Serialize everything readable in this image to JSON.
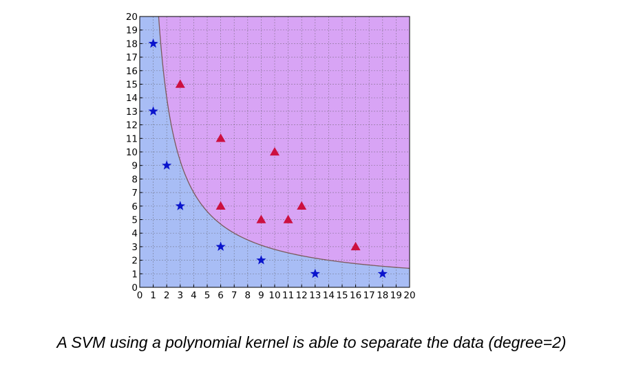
{
  "chart_data": {
    "type": "scatter",
    "title": "",
    "xlabel": "",
    "ylabel": "",
    "xlim": [
      0,
      20
    ],
    "ylim": [
      0,
      20
    ],
    "x_ticks": [
      0,
      1,
      2,
      3,
      4,
      5,
      6,
      7,
      8,
      9,
      10,
      11,
      12,
      13,
      14,
      15,
      16,
      17,
      18,
      19,
      20
    ],
    "y_ticks": [
      0,
      1,
      2,
      3,
      4,
      5,
      6,
      7,
      8,
      9,
      10,
      11,
      12,
      13,
      14,
      15,
      16,
      17,
      18,
      19,
      20
    ],
    "grid": true,
    "legend": "none",
    "decision_boundary": {
      "shape": "hyperbola",
      "note": "x * y ≈ 28",
      "product": 28,
      "color": "#7a5a5a"
    },
    "regions": {
      "below_boundary_color": "#a8bdf5",
      "above_boundary_color": "#d8a4f5"
    },
    "series": [
      {
        "marker": "star",
        "color": "#0a14cc",
        "points": [
          [
            1,
            18
          ],
          [
            1,
            13
          ],
          [
            2,
            9
          ],
          [
            3,
            6
          ],
          [
            6,
            3
          ],
          [
            9,
            2
          ],
          [
            13,
            1
          ],
          [
            18,
            1
          ]
        ]
      },
      {
        "marker": "triangle",
        "color": "#cc1040",
        "points": [
          [
            3,
            15
          ],
          [
            6,
            11
          ],
          [
            6,
            6
          ],
          [
            9,
            5
          ],
          [
            10,
            10
          ],
          [
            11,
            5
          ],
          [
            12,
            6
          ],
          [
            16,
            3
          ]
        ]
      }
    ]
  },
  "caption": "A SVM using a polynomial kernel is able to separate the data (degree=2)"
}
